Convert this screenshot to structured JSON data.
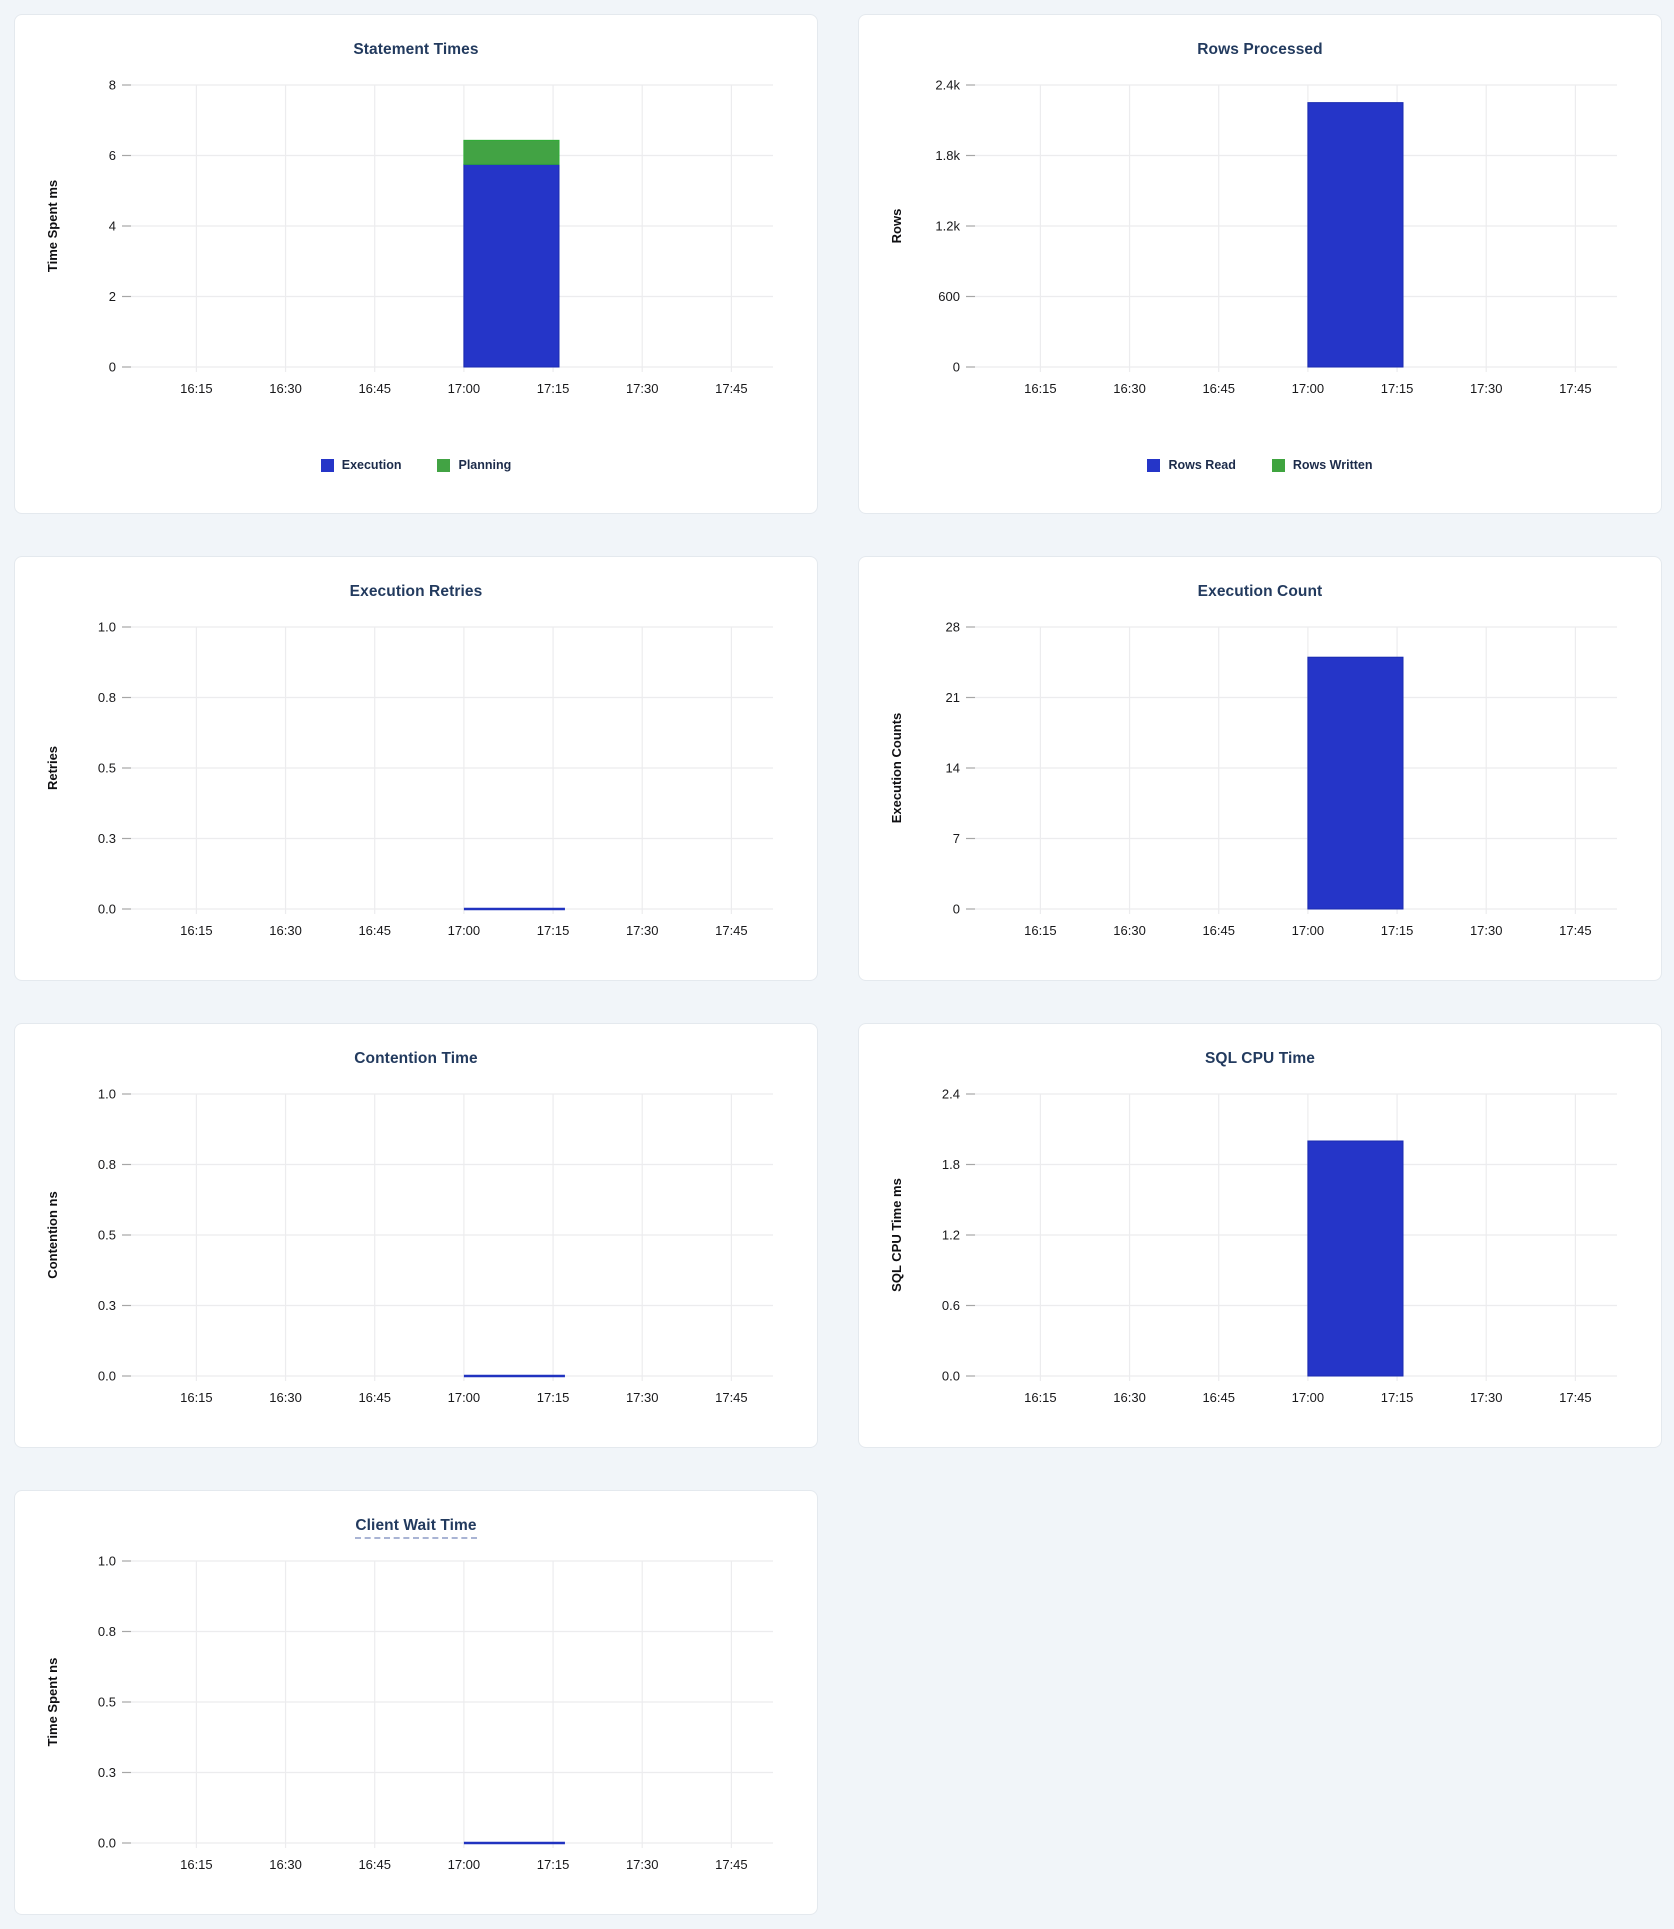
{
  "colors": {
    "page_background": "#f1f5f9",
    "panel_background": "#ffffff",
    "panel_border": "#e4e9ee",
    "title": "#223a5e",
    "axis_text": "#18181a",
    "gridline": "#ececee",
    "tick": "#a6a6a6",
    "legend_text": "#1c2b4a",
    "series_blue": "#2535c8",
    "series_green": "#3fa43f"
  },
  "chart_data": [
    {
      "id": "statement-times",
      "type": "bar",
      "title": "Statement Times",
      "xlabel": "",
      "ylabel": "Time Spent ms",
      "ylim": [
        0,
        8
      ],
      "ytick_values": [
        0,
        2,
        4,
        6,
        8
      ],
      "ytick_labels": [
        "0",
        "2",
        "4",
        "6",
        "8"
      ],
      "x_domain": [
        "16:04",
        "17:52"
      ],
      "x_ticks": [
        "16:15",
        "16:30",
        "16:45",
        "17:00",
        "17:15",
        "17:30",
        "17:45"
      ],
      "bar": {
        "start": "17:00",
        "end": "17:16"
      },
      "stacked": true,
      "legend_position": "bottom",
      "series": [
        {
          "name": "Execution",
          "value": 5.75,
          "color": "#2535c8",
          "stroke": "#1a2bb0"
        },
        {
          "name": "Planning",
          "value": 0.68,
          "color": "#42a344",
          "stroke": "#2fad36"
        }
      ]
    },
    {
      "id": "rows-processed",
      "type": "bar",
      "title": "Rows Processed",
      "xlabel": "",
      "ylabel": "Rows",
      "ylim": [
        0,
        2400
      ],
      "ytick_values": [
        0,
        600,
        1200,
        1800,
        2400
      ],
      "ytick_labels": [
        "0",
        "600",
        "1.2k",
        "1.8k",
        "2.4k"
      ],
      "x_domain": [
        "16:04",
        "17:52"
      ],
      "x_ticks": [
        "16:15",
        "16:30",
        "16:45",
        "17:00",
        "17:15",
        "17:30",
        "17:45"
      ],
      "bar": {
        "start": "17:00",
        "end": "17:16"
      },
      "stacked": true,
      "legend_position": "bottom",
      "series": [
        {
          "name": "Rows Read",
          "value": 2250,
          "color": "#2535c8",
          "stroke": "#1a2bb0"
        },
        {
          "name": "Rows Written",
          "value": 0,
          "color": "#3fa43f",
          "stroke": "#2fad36"
        }
      ]
    },
    {
      "id": "execution-retries",
      "type": "line",
      "title": "Execution Retries",
      "xlabel": "",
      "ylabel": "Retries",
      "ylim": [
        0,
        1
      ],
      "ytick_values": [
        0,
        0.25,
        0.5,
        0.75,
        1
      ],
      "ytick_labels": [
        "0.0",
        "0.3",
        "0.5",
        "0.8",
        "1.0"
      ],
      "x_domain": [
        "16:04",
        "17:52"
      ],
      "x_ticks": [
        "16:15",
        "16:30",
        "16:45",
        "17:00",
        "17:15",
        "17:30",
        "17:45"
      ],
      "line": {
        "start": "17:00",
        "end": "17:17"
      },
      "series": [
        {
          "value": 0,
          "color": "#2133c0"
        }
      ]
    },
    {
      "id": "execution-count",
      "type": "bar",
      "title": "Execution Count",
      "xlabel": "",
      "ylabel": "Execution Counts",
      "ylim": [
        0,
        28
      ],
      "ytick_values": [
        0,
        7,
        14,
        21,
        28
      ],
      "ytick_labels": [
        "0",
        "7",
        "14",
        "21",
        "28"
      ],
      "x_domain": [
        "16:04",
        "17:52"
      ],
      "x_ticks": [
        "16:15",
        "16:30",
        "16:45",
        "17:00",
        "17:15",
        "17:30",
        "17:45"
      ],
      "bar": {
        "start": "17:00",
        "end": "17:16"
      },
      "stacked": false,
      "series": [
        {
          "name": "Execution Count",
          "value": 25,
          "color": "#2535c8",
          "stroke": "#1a2bb0"
        }
      ]
    },
    {
      "id": "contention-time",
      "type": "line",
      "title": "Contention Time",
      "xlabel": "",
      "ylabel": "Contention ns",
      "ylim": [
        0,
        1
      ],
      "ytick_values": [
        0,
        0.25,
        0.5,
        0.75,
        1
      ],
      "ytick_labels": [
        "0.0",
        "0.3",
        "0.5",
        "0.8",
        "1.0"
      ],
      "x_domain": [
        "16:04",
        "17:52"
      ],
      "x_ticks": [
        "16:15",
        "16:30",
        "16:45",
        "17:00",
        "17:15",
        "17:30",
        "17:45"
      ],
      "line": {
        "start": "17:00",
        "end": "17:17"
      },
      "series": [
        {
          "value": 0,
          "color": "#2133c0"
        }
      ]
    },
    {
      "id": "sql-cpu-time",
      "type": "bar",
      "title": "SQL CPU Time",
      "xlabel": "",
      "ylabel": "SQL CPU Time ms",
      "ylim": [
        0,
        2.4
      ],
      "ytick_values": [
        0,
        0.6,
        1.2,
        1.8,
        2.4
      ],
      "ytick_labels": [
        "0.0",
        "0.6",
        "1.2",
        "1.8",
        "2.4"
      ],
      "x_domain": [
        "16:04",
        "17:52"
      ],
      "x_ticks": [
        "16:15",
        "16:30",
        "16:45",
        "17:00",
        "17:15",
        "17:30",
        "17:45"
      ],
      "bar": {
        "start": "17:00",
        "end": "17:16"
      },
      "stacked": false,
      "series": [
        {
          "name": "SQL CPU Time",
          "value": 2.0,
          "color": "#2535c8",
          "stroke": "#1a2bb0"
        }
      ]
    },
    {
      "id": "client-wait-time",
      "type": "line",
      "title": "Client Wait Time",
      "title_has_tooltip": true,
      "xlabel": "",
      "ylabel": "Time Spent ns",
      "ylim": [
        0,
        1
      ],
      "ytick_values": [
        0,
        0.25,
        0.5,
        0.75,
        1
      ],
      "ytick_labels": [
        "0.0",
        "0.3",
        "0.5",
        "0.8",
        "1.0"
      ],
      "x_domain": [
        "16:04",
        "17:52"
      ],
      "x_ticks": [
        "16:15",
        "16:30",
        "16:45",
        "17:00",
        "17:15",
        "17:30",
        "17:45"
      ],
      "line": {
        "start": "17:00",
        "end": "17:17"
      },
      "series": [
        {
          "value": 0,
          "color": "#2133c0"
        }
      ]
    }
  ]
}
